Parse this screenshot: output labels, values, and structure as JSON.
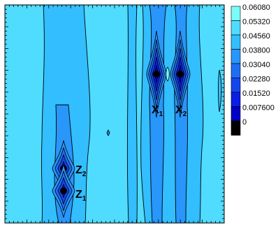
{
  "chart_data": {
    "type": "contour",
    "title": "",
    "xlabel": "",
    "ylabel": "",
    "grid": false,
    "colorbar": {
      "position": "right",
      "levels": [
        0,
        0.0076,
        0.0152,
        0.0228,
        0.0304,
        0.038,
        0.0456,
        0.0532,
        0.0608
      ],
      "tick_labels": [
        "0.06080",
        "0.05320",
        "0.04560",
        "0.03800",
        "0.03040",
        "0.02280",
        "0.01520",
        "0.007600",
        "0"
      ],
      "colors": [
        "#000000",
        "#0000c8",
        "#0a1ee6",
        "#1446f0",
        "#1e6ef5",
        "#2896fa",
        "#32beff",
        "#50dcff",
        "#7cfcf8"
      ]
    },
    "annotations": [
      {
        "id": "x1",
        "base": "X",
        "sub": "1"
      },
      {
        "id": "x2",
        "base": "X",
        "sub": "2"
      },
      {
        "id": "z1",
        "base": "Z",
        "sub": "1"
      },
      {
        "id": "z2",
        "base": "Z",
        "sub": "2"
      }
    ],
    "features": [
      {
        "name": "minimum-x1",
        "level": 0
      },
      {
        "name": "minimum-x2",
        "level": 0
      },
      {
        "name": "minimum-z2",
        "level": 0
      },
      {
        "name": "minimum-z1",
        "level": 0
      }
    ]
  }
}
